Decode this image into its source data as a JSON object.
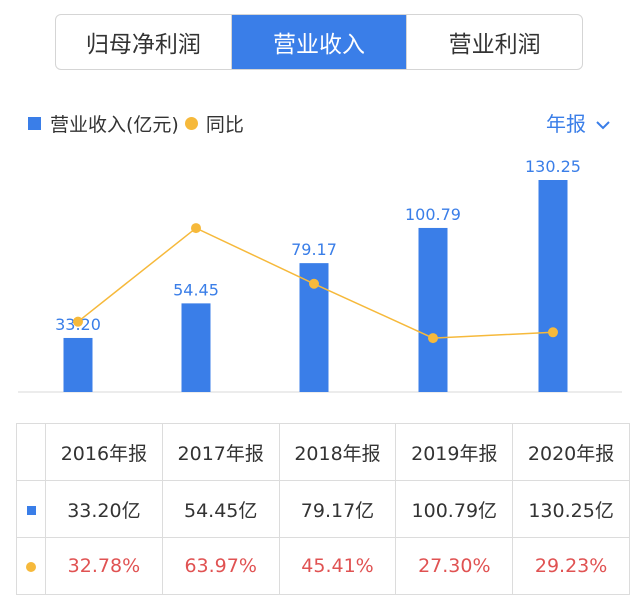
{
  "tabs": [
    {
      "label": "归母净利润",
      "active": false
    },
    {
      "label": "营业收入",
      "active": true
    },
    {
      "label": "营业利润",
      "active": false
    }
  ],
  "legend": {
    "bar_label": "营业收入(亿元)",
    "line_label": "同比"
  },
  "period_selector": {
    "label": "年报",
    "icon": "chevron-down-icon"
  },
  "colors": {
    "accent": "#3a7ee8",
    "line": "#f6b93b",
    "percent_text": "#e05252"
  },
  "chart_data": {
    "type": "bar",
    "categories": [
      "2016年报",
      "2017年报",
      "2018年报",
      "2019年报",
      "2020年报"
    ],
    "series": [
      {
        "name": "营业收入(亿元)",
        "type": "bar",
        "values": [
          33.2,
          54.45,
          79.17,
          100.79,
          130.25
        ],
        "labels": [
          "33.20",
          "54.45",
          "79.17",
          "100.79",
          "130.25"
        ]
      },
      {
        "name": "同比",
        "type": "line",
        "values": [
          32.78,
          63.97,
          45.41,
          27.3,
          29.23
        ]
      }
    ],
    "ylim": [
      0,
      130.25
    ],
    "grid": false,
    "legend": "top-left"
  },
  "table": {
    "headers": [
      "2016年报",
      "2017年报",
      "2018年报",
      "2019年报",
      "2020年报"
    ],
    "revenue_row": [
      "33.20亿",
      "54.45亿",
      "79.17亿",
      "100.79亿",
      "130.25亿"
    ],
    "growth_row": [
      "32.78%",
      "63.97%",
      "45.41%",
      "27.30%",
      "29.23%"
    ]
  }
}
